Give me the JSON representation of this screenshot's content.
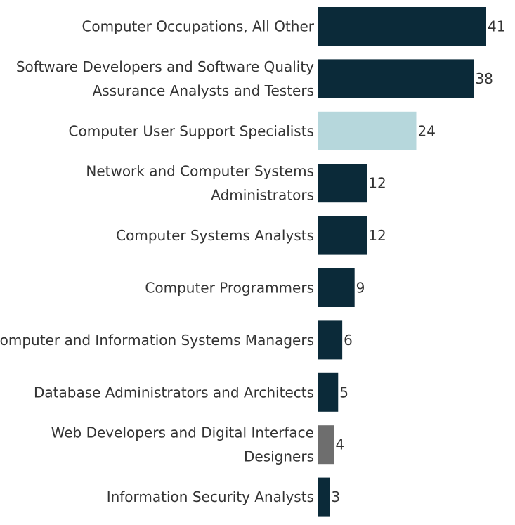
{
  "chart_data": {
    "type": "bar",
    "orientation": "horizontal",
    "categories": [
      [
        "Computer Occupations, All Other"
      ],
      [
        "Software Developers and Software Quality",
        "Assurance Analysts and Testers"
      ],
      [
        "Computer User Support Specialists"
      ],
      [
        "Network and Computer Systems",
        "Administrators"
      ],
      [
        "Computer Systems Analysts"
      ],
      [
        "Computer Programmers"
      ],
      [
        "Computer and Information Systems Managers"
      ],
      [
        "Database Administrators and Architects"
      ],
      [
        "Web Developers and Digital Interface",
        "Designers"
      ],
      [
        "Information Security Analysts"
      ]
    ],
    "values": [
      41,
      38,
      24,
      12,
      12,
      9,
      6,
      5,
      4,
      3
    ],
    "value_labels": [
      "41",
      "38",
      "24",
      "12",
      "12",
      "9",
      "6",
      "5",
      "4",
      "3"
    ],
    "colors": [
      "#0b2a39",
      "#0b2a39",
      "#b6d7dc",
      "#0b2a39",
      "#0b2a39",
      "#0b2a39",
      "#0b2a39",
      "#0b2a39",
      "#6e6e6e",
      "#0b2a39"
    ],
    "title": "",
    "xlabel": "",
    "ylabel": "",
    "xlim": [
      0,
      41
    ],
    "grid": false,
    "legend": "none"
  }
}
